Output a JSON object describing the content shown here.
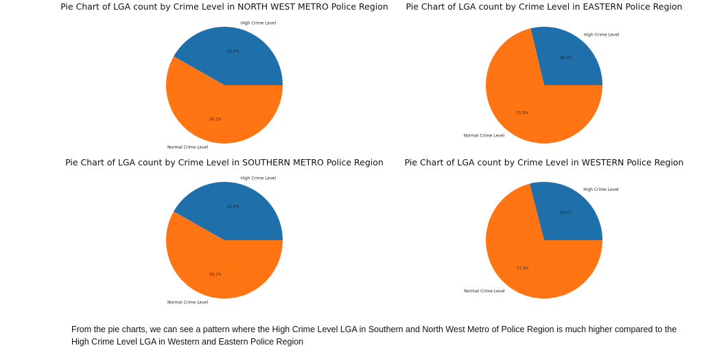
{
  "chart_data": [
    {
      "type": "pie",
      "title": "Pie Chart of LGA count by Crime Level in NORTH WEST METRO Police Region",
      "labels": [
        "High Crime Level",
        "Normal Crime Level"
      ],
      "values": [
        41.8,
        58.2
      ],
      "autopct": [
        "41.8%",
        "58.2%"
      ],
      "colors": [
        "#1f6fab",
        "#ff7514"
      ]
    },
    {
      "type": "pie",
      "title": "Pie Chart of LGA count by Crime Level in EASTERN Police Region",
      "labels": [
        "High Crime Level",
        "Normal Crime Level"
      ],
      "values": [
        28.7,
        71.3
      ],
      "autopct": [
        "28.7%",
        "71.3%"
      ],
      "colors": [
        "#1f6fab",
        "#ff7514"
      ]
    },
    {
      "type": "pie",
      "title": "Pie Chart of LGA count by Crime Level in SOUTHERN METRO Police Region",
      "labels": [
        "High Crime Level",
        "Normal Crime Level"
      ],
      "values": [
        41.8,
        58.2
      ],
      "autopct": [
        "41.8%",
        "58.2%"
      ],
      "colors": [
        "#1f6fab",
        "#ff7514"
      ]
    },
    {
      "type": "pie",
      "title": "Pie Chart of LGA count by Crime Level in WESTERN Police Region",
      "labels": [
        "High Crime Level",
        "Normal Crime Level"
      ],
      "values": [
        29.0,
        71.0
      ],
      "autopct": [
        "29.0%",
        "71.0%"
      ],
      "colors": [
        "#1f6fab",
        "#ff7514"
      ]
    }
  ],
  "conclusion": "From the pie charts, we can see a pattern where the High Crime Level LGA in Southern and North West Metro of Police Region is much higher compared to the High Crime Level LGA in Western and Eastern Police Region"
}
